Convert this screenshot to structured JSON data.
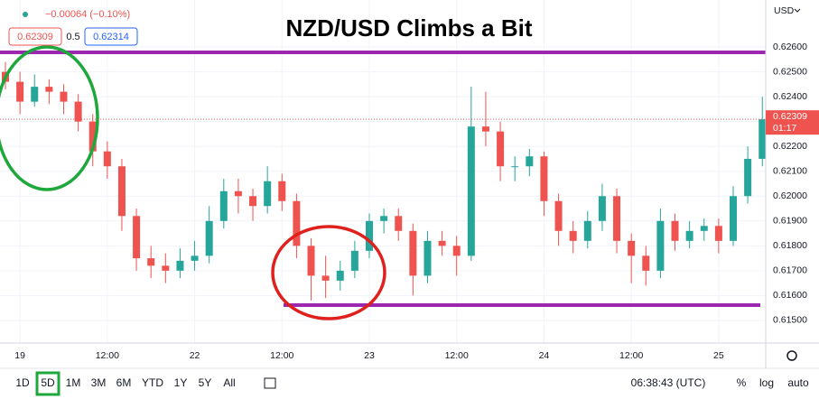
{
  "chart_data": {
    "type": "candlestick",
    "title": "NZD/USD Climbs a Bit",
    "change": "−0.00064 (−0.10%)",
    "bid": "0.62309",
    "spread": "0.5",
    "ask": "0.62314",
    "currency": "USD",
    "last_price": 0.62309,
    "last_price_label": "0.62309",
    "countdown": "01:17",
    "up_color": "#26a69a",
    "down_color": "#ef5350",
    "grid": true,
    "categories": [
      null,
      "19",
      null,
      null,
      null,
      null,
      null,
      "12:00",
      null,
      null,
      null,
      null,
      null,
      "22",
      null,
      null,
      null,
      null,
      null,
      "12:00",
      null,
      null,
      null,
      null,
      null,
      "23",
      null,
      null,
      null,
      null,
      null,
      "12:00",
      null,
      null,
      null,
      null,
      null,
      "24",
      null,
      null,
      null,
      null,
      null,
      "12:00",
      null,
      null,
      null,
      null,
      null,
      "25",
      null,
      null,
      null
    ],
    "open": [
      0.625,
      0.6246,
      0.6238,
      0.6244,
      0.6242,
      0.6238,
      0.623,
      0.6218,
      0.6212,
      0.6192,
      0.6175,
      0.6172,
      0.617,
      0.6174,
      0.6176,
      0.619,
      0.6202,
      0.62,
      0.6196,
      0.6206,
      0.6198,
      0.618,
      0.6168,
      0.6166,
      0.617,
      0.6178,
      0.619,
      0.6192,
      0.6186,
      0.6168,
      0.6182,
      0.618,
      0.6176,
      0.6228,
      0.6226,
      0.6212,
      0.6212,
      0.6216,
      0.6198,
      0.6186,
      0.6182,
      0.619,
      0.62,
      0.6182,
      0.6176,
      0.617,
      0.619,
      0.6182,
      0.6186,
      0.6188,
      0.6182,
      0.62,
      0.6215
    ],
    "high": [
      0.6254,
      0.625,
      0.6249,
      0.6247,
      0.6245,
      0.6241,
      0.6233,
      0.6222,
      0.6215,
      0.6195,
      0.618,
      0.6177,
      0.6179,
      0.6182,
      0.6196,
      0.6207,
      0.6207,
      0.6203,
      0.6212,
      0.6209,
      0.6201,
      0.6183,
      0.6176,
      0.6174,
      0.6182,
      0.6193,
      0.6195,
      0.6195,
      0.6189,
      0.6186,
      0.6186,
      0.6184,
      0.6244,
      0.6242,
      0.623,
      0.6216,
      0.6219,
      0.6218,
      0.6201,
      0.619,
      0.6194,
      0.6205,
      0.6203,
      0.6185,
      0.618,
      0.6195,
      0.6193,
      0.619,
      0.6191,
      0.6191,
      0.6204,
      0.622,
      0.624
    ],
    "low": [
      0.6243,
      0.6233,
      0.6236,
      0.6237,
      0.6233,
      0.6226,
      0.6212,
      0.6207,
      0.6186,
      0.617,
      0.6167,
      0.6165,
      0.6167,
      0.617,
      0.6173,
      0.6187,
      0.6193,
      0.619,
      0.6193,
      0.6194,
      0.6175,
      0.6158,
      0.6159,
      0.6162,
      0.6167,
      0.6175,
      0.6185,
      0.6182,
      0.616,
      0.6165,
      0.6176,
      0.6168,
      0.6174,
      0.622,
      0.6206,
      0.6206,
      0.6208,
      0.6192,
      0.618,
      0.6177,
      0.6179,
      0.6186,
      0.6177,
      0.6165,
      0.6164,
      0.6167,
      0.6178,
      0.6179,
      0.6182,
      0.6177,
      0.618,
      0.6197,
      0.6212
    ],
    "close": [
      0.6246,
      0.6238,
      0.6244,
      0.6242,
      0.6238,
      0.623,
      0.6218,
      0.6212,
      0.6192,
      0.6175,
      0.6172,
      0.617,
      0.6174,
      0.6176,
      0.619,
      0.6202,
      0.62,
      0.6196,
      0.6206,
      0.6198,
      0.618,
      0.6168,
      0.6166,
      0.617,
      0.6178,
      0.619,
      0.6192,
      0.6186,
      0.6168,
      0.6182,
      0.618,
      0.6176,
      0.6228,
      0.6226,
      0.6212,
      0.6212,
      0.6216,
      0.6198,
      0.6186,
      0.6182,
      0.619,
      0.62,
      0.6182,
      0.6176,
      0.617,
      0.619,
      0.6182,
      0.6186,
      0.6188,
      0.6182,
      0.62,
      0.6215,
      0.62309
    ],
    "ylim": [
      0.61409,
      0.62789
    ],
    "yticks": [
      {
        "value": 0.626,
        "label": "0.62600"
      },
      {
        "value": 0.625,
        "label": "0.62500"
      },
      {
        "value": 0.624,
        "label": "0.62400"
      },
      {
        "value": 0.623,
        "label": "0.62300"
      },
      {
        "value": 0.622,
        "label": "0.62200"
      },
      {
        "value": 0.621,
        "label": "0.62100"
      },
      {
        "value": 0.62,
        "label": "0.62000"
      },
      {
        "value": 0.619,
        "label": "0.61900"
      },
      {
        "value": 0.618,
        "label": "0.61800"
      },
      {
        "value": 0.617,
        "label": "0.61700"
      },
      {
        "value": 0.616,
        "label": "0.61600"
      },
      {
        "value": 0.615,
        "label": "0.61500"
      }
    ]
  },
  "toolbar": {
    "ranges": [
      "1D",
      "5D",
      "1M",
      "3M",
      "6M",
      "YTD",
      "1Y",
      "5Y",
      "All"
    ],
    "clock": "06:38:43 (UTC)",
    "percent": "%",
    "log": "log",
    "auto": "auto"
  }
}
